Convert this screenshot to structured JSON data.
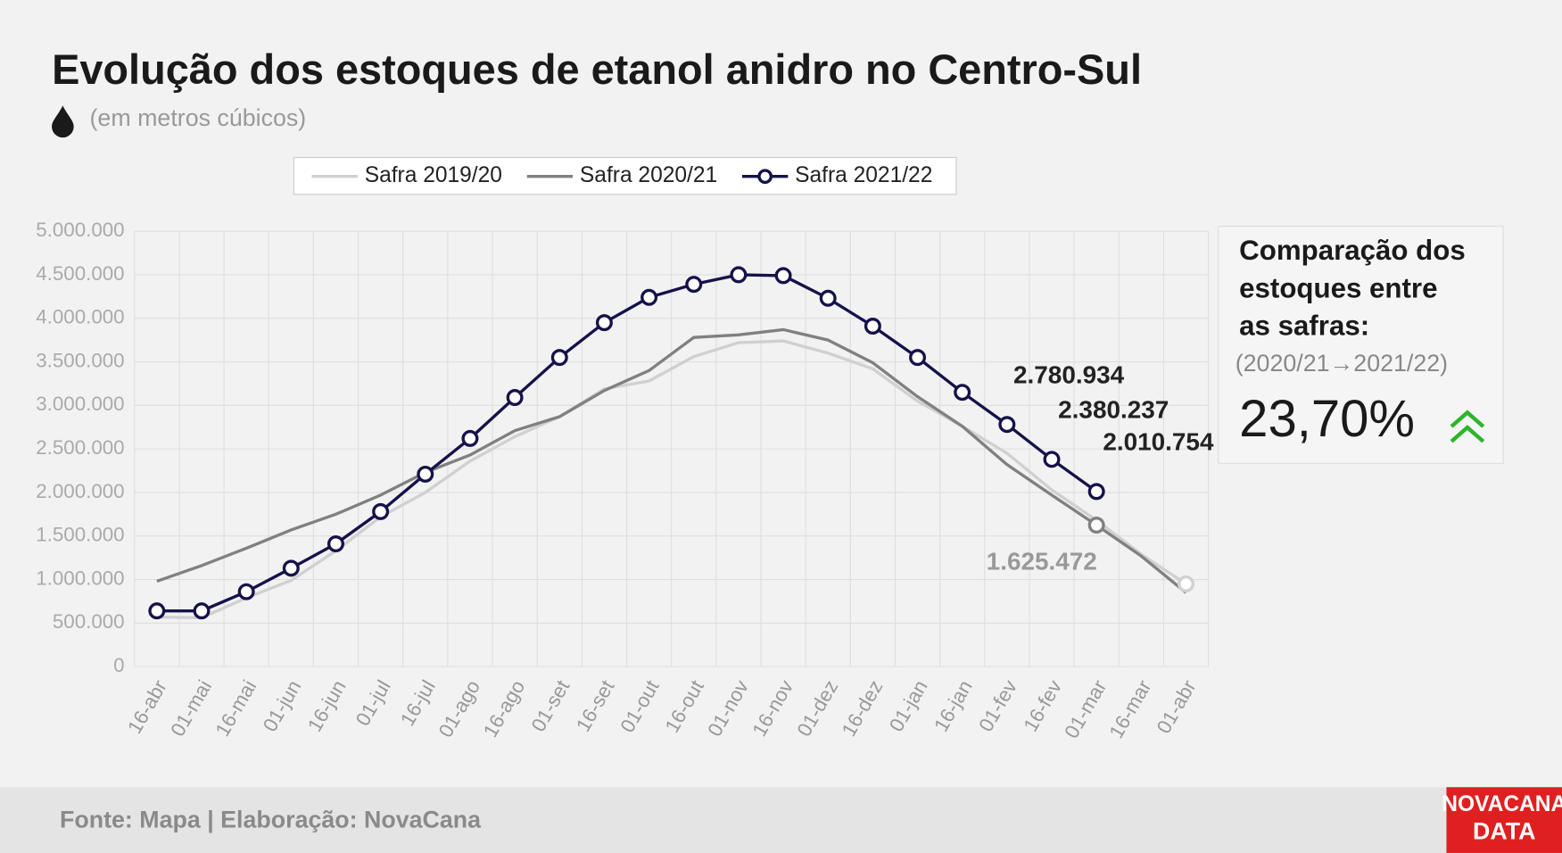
{
  "chart_data": {
    "type": "line",
    "title": "Evolução dos estoques de etanol anidro no Centro-Sul",
    "subtitle": "(em metros cúbicos)",
    "categories": [
      "16-abr",
      "01-mai",
      "16-mai",
      "01-jun",
      "16-jun",
      "01-jul",
      "16-jul",
      "01-ago",
      "16-ago",
      "01-set",
      "16-set",
      "01-out",
      "16-out",
      "01-nov",
      "16-nov",
      "01-dez",
      "16-dez",
      "01-jan",
      "16-jan",
      "01-fev",
      "16-fev",
      "01-mar",
      "16-mar",
      "01-abr"
    ],
    "series": [
      {
        "name": "Safra 2019/20",
        "color": "#d0d0d0",
        "markers": [
          23
        ],
        "values": [
          570000,
          560000,
          790000,
          990000,
          1330000,
          1720000,
          2000000,
          2360000,
          2640000,
          2870000,
          3190000,
          3280000,
          3560000,
          3720000,
          3740000,
          3600000,
          3420000,
          3050000,
          2760000,
          2450000,
          2030000,
          1680000,
          1290000,
          950000
        ]
      },
      {
        "name": "Safra 2020/21",
        "color": "#808080",
        "markers": [
          21
        ],
        "values": [
          980000,
          1160000,
          1360000,
          1570000,
          1750000,
          1970000,
          2230000,
          2430000,
          2710000,
          2870000,
          3170000,
          3400000,
          3780000,
          3810000,
          3870000,
          3750000,
          3490000,
          3100000,
          2760000,
          2320000,
          1970000,
          1625472,
          1270000,
          850000
        ],
        "value_labels": [
          null,
          null,
          null,
          null,
          null,
          null,
          null,
          null,
          null,
          null,
          null,
          null,
          null,
          null,
          null,
          null,
          null,
          null,
          null,
          null,
          null,
          "1.625.472",
          null,
          null
        ]
      },
      {
        "name": "Safra 2021/22",
        "color": "#15124a",
        "markers": [
          0,
          1,
          2,
          3,
          4,
          5,
          6,
          7,
          8,
          9,
          10,
          11,
          12,
          13,
          14,
          15,
          16,
          17,
          18,
          19,
          20,
          21
        ],
        "values": [
          640000,
          640000,
          860000,
          1130000,
          1410000,
          1780000,
          2210000,
          2620000,
          3090000,
          3550000,
          3950000,
          4240000,
          4390000,
          4500000,
          4490000,
          4230000,
          3910000,
          3550000,
          3150000,
          2780934,
          2380237,
          2010754,
          null,
          null
        ],
        "value_labels": [
          null,
          null,
          null,
          null,
          null,
          null,
          null,
          null,
          null,
          null,
          null,
          null,
          null,
          null,
          null,
          null,
          null,
          null,
          null,
          "2.780.934",
          "2.380.237",
          "2.010.754",
          null,
          null
        ]
      }
    ],
    "ylim": [
      0,
      5000000
    ],
    "yticks": [
      0,
      {
        "value": 500000,
        "label": "500.000"
      },
      {
        "value": 1000000,
        "label": "1.000.000"
      },
      {
        "value": 1500000,
        "label": "1.500.000"
      },
      {
        "value": 2000000,
        "label": "2.000.000"
      },
      {
        "value": 2500000,
        "label": "2.500.000"
      },
      {
        "value": 3000000,
        "label": "3.000.000"
      },
      {
        "value": 3500000,
        "label": "3.500.000"
      },
      {
        "value": 4000000,
        "label": "4.000.000"
      },
      {
        "value": 4500000,
        "label": "4.500.000"
      },
      {
        "value": 5000000,
        "label": "5.000.000"
      }
    ],
    "grid": true,
    "legend": "top",
    "comparison": {
      "title": [
        "Comparação dos",
        "estoques entre",
        "as safras:"
      ],
      "period": "(2020/21→2021/22)",
      "value": "23,70%"
    },
    "source": "Fonte: Mapa | Elaboração: NovaCana",
    "logo": [
      "NOVACANA",
      "DATA"
    ]
  }
}
